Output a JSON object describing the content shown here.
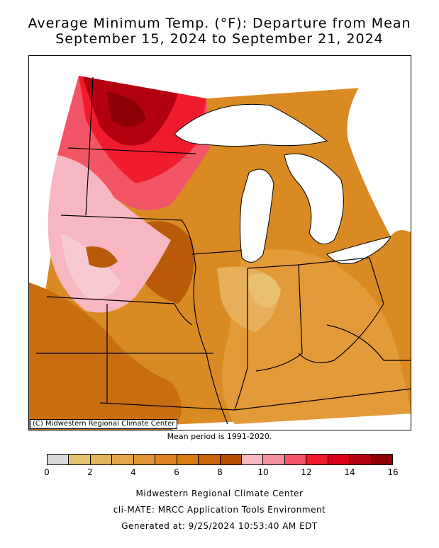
{
  "title_line1": "Average Minimum Temp. (°F): Departure from Mean",
  "title_line2": "September 15, 2024 to September 21, 2024",
  "credit": "(C) Midwestern Regional Climate Center",
  "mean_period": "Mean period is 1991-2020.",
  "legend": {
    "colors": [
      "#d9d9d9",
      "#e6c16e",
      "#e5b55c",
      "#e3a64a",
      "#e19536",
      "#df8424",
      "#d97a12",
      "#c86508",
      "#b54c03",
      "#f6b6c2",
      "#f48f9c",
      "#f25565",
      "#f01c2e",
      "#d90019",
      "#b3000f",
      "#8c0005"
    ],
    "ticks": [
      "0",
      "2",
      "4",
      "6",
      "8",
      "10",
      "12",
      "14",
      "16"
    ]
  },
  "footer": {
    "line1": "Midwestern Regional Climate Center",
    "line2": "cli-MATE: MRCC Application Tools Environment",
    "line3": "Generated at: 9/25/2024 10:53:40 AM EDT"
  }
}
